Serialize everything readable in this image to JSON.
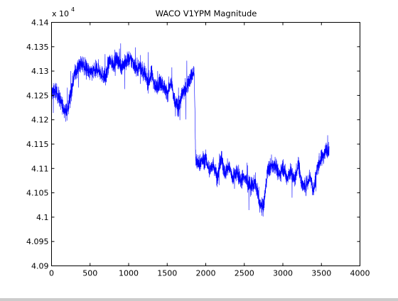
{
  "figure": {
    "background": "#ffffff"
  },
  "chart_data": {
    "type": "line",
    "title": "WACO V1YPM Magnitude",
    "xlabel": "",
    "ylabel": "",
    "exponent_label": "x 10",
    "exponent_power": "4",
    "xlim": [
      0,
      4000
    ],
    "ylim": [
      4.09,
      4.14
    ],
    "x_ticks": [
      0,
      500,
      1000,
      1500,
      2000,
      2500,
      3000,
      3500,
      4000
    ],
    "x_tick_labels": [
      "0",
      "500",
      "1000",
      "1500",
      "2000",
      "2500",
      "3000",
      "3500",
      "4000"
    ],
    "y_ticks": [
      4.09,
      4.095,
      4.1,
      4.105,
      4.11,
      4.115,
      4.12,
      4.125,
      4.13,
      4.135,
      4.14
    ],
    "y_tick_labels": [
      "4.09",
      "4.095",
      "4.1",
      "4.105",
      "4.11",
      "4.115",
      "4.12",
      "4.125",
      "4.13",
      "4.135",
      "4.14"
    ],
    "grid": false,
    "line_color": "#0000ff",
    "series": [
      {
        "x": [
          0,
          50,
          100,
          150,
          200,
          250,
          300,
          350,
          400,
          450,
          500,
          550,
          600,
          650,
          700,
          750,
          800,
          850,
          900,
          950,
          1000,
          1050,
          1100,
          1150,
          1200,
          1250,
          1300,
          1350,
          1400,
          1450,
          1500,
          1550,
          1600,
          1650,
          1700,
          1750,
          1800,
          1850,
          1870,
          1900,
          1950,
          2000,
          2050,
          2100,
          2150,
          2200,
          2250,
          2300,
          2350,
          2400,
          2450,
          2500,
          2550,
          2600,
          2650,
          2700,
          2750,
          2800,
          2850,
          2900,
          2950,
          3000,
          3050,
          3100,
          3150,
          3200,
          3250,
          3300,
          3350,
          3400,
          3450,
          3500,
          3550,
          3600
        ],
        "y": [
          4.1255,
          4.126,
          4.1245,
          4.1225,
          4.1215,
          4.1255,
          4.1295,
          4.131,
          4.1315,
          4.1305,
          4.1295,
          4.13,
          4.1305,
          4.1295,
          4.1285,
          4.132,
          4.1315,
          4.1325,
          4.131,
          4.1315,
          4.1325,
          4.132,
          4.1305,
          4.131,
          4.1295,
          4.1275,
          4.1295,
          4.1265,
          4.128,
          4.127,
          4.1255,
          4.1275,
          4.1235,
          4.1225,
          4.1255,
          4.1265,
          4.1285,
          4.13,
          4.1115,
          4.111,
          4.1115,
          4.112,
          4.1095,
          4.111,
          4.108,
          4.112,
          4.109,
          4.1105,
          4.108,
          4.1095,
          4.1075,
          4.1085,
          4.1065,
          4.1065,
          4.107,
          4.1025,
          4.102,
          4.1095,
          4.1105,
          4.111,
          4.1085,
          4.1105,
          4.108,
          4.1095,
          4.1075,
          4.111,
          4.1065,
          4.1065,
          4.1085,
          4.1055,
          4.1105,
          4.112,
          4.1135,
          4.1145
        ]
      }
    ]
  }
}
